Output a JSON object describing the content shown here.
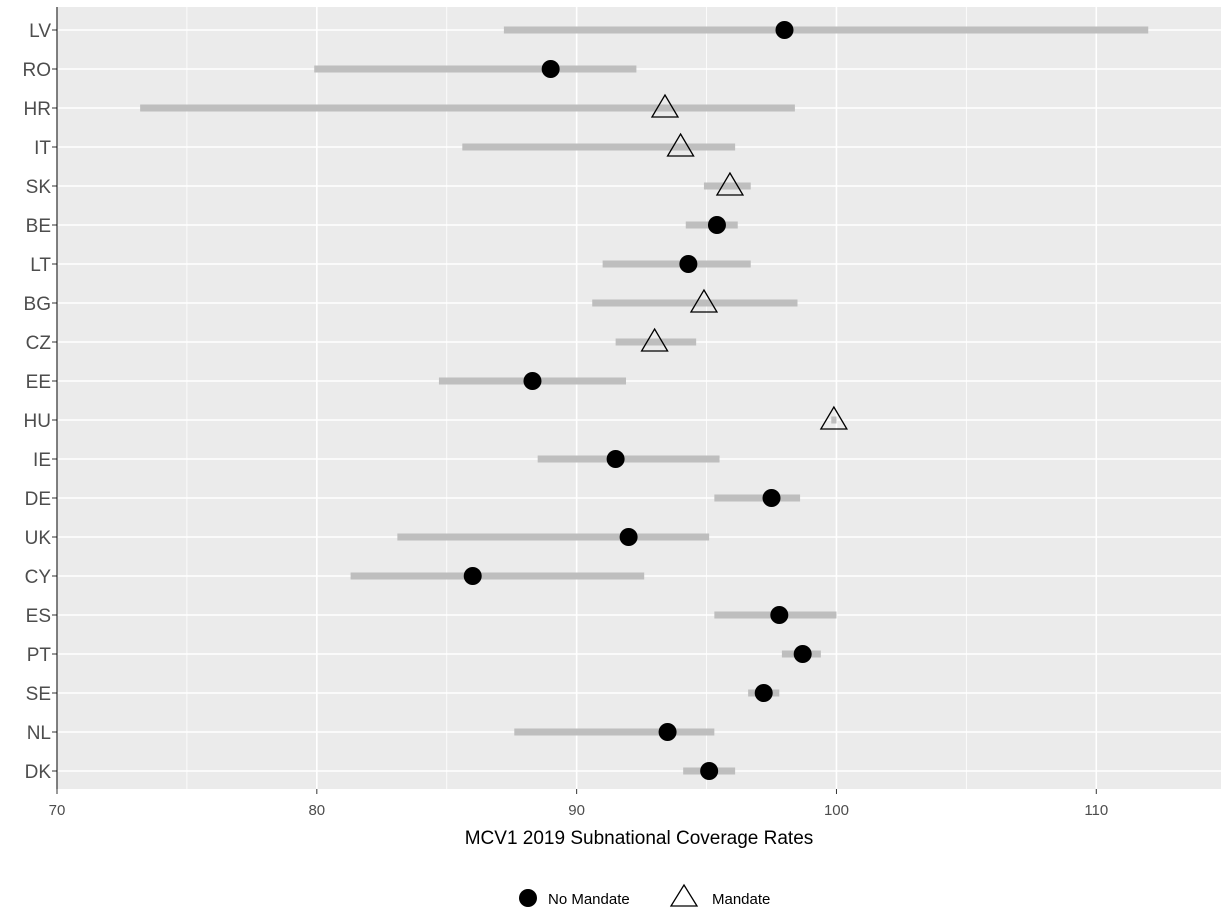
{
  "chart_data": {
    "type": "dot-range",
    "xlabel": "MCV1 2019 Subnational Coverage Rates",
    "xlim": [
      70,
      114.8
    ],
    "x_ticks": [
      70,
      80,
      90,
      100,
      110
    ],
    "x_minor_ticks": [
      75,
      85,
      95,
      105
    ],
    "grid": true,
    "legend_position": "bottom",
    "legend": [
      {
        "key": "no_mandate",
        "label": "No Mandate",
        "marker": "circle"
      },
      {
        "key": "mandate",
        "label": "Mandate",
        "marker": "triangle"
      }
    ],
    "colors": {
      "panel": "#ebebeb",
      "grid": "#ffffff",
      "range": "#bebebe",
      "point": "#000000",
      "tick_text": "#4d4d4d"
    },
    "countries": [
      {
        "code": "LV",
        "low": 87.2,
        "high": 112.0,
        "value": 98.0,
        "mandate": false
      },
      {
        "code": "RO",
        "low": 79.9,
        "high": 92.3,
        "value": 89.0,
        "mandate": false
      },
      {
        "code": "HR",
        "low": 73.2,
        "high": 98.4,
        "value": 93.4,
        "mandate": true
      },
      {
        "code": "IT",
        "low": 85.6,
        "high": 96.1,
        "value": 94.0,
        "mandate": true
      },
      {
        "code": "SK",
        "low": 94.9,
        "high": 96.7,
        "value": 95.9,
        "mandate": true
      },
      {
        "code": "BE",
        "low": 94.2,
        "high": 96.2,
        "value": 95.4,
        "mandate": false
      },
      {
        "code": "LT",
        "low": 91.0,
        "high": 96.7,
        "value": 94.3,
        "mandate": false
      },
      {
        "code": "BG",
        "low": 90.6,
        "high": 98.5,
        "value": 94.9,
        "mandate": true
      },
      {
        "code": "CZ",
        "low": 91.5,
        "high": 94.6,
        "value": 93.0,
        "mandate": true
      },
      {
        "code": "EE",
        "low": 84.7,
        "high": 91.9,
        "value": 88.3,
        "mandate": false
      },
      {
        "code": "HU",
        "low": 99.8,
        "high": 100.0,
        "value": 99.9,
        "mandate": true
      },
      {
        "code": "IE",
        "low": 88.5,
        "high": 95.5,
        "value": 91.5,
        "mandate": false
      },
      {
        "code": "DE",
        "low": 95.3,
        "high": 98.6,
        "value": 97.5,
        "mandate": false
      },
      {
        "code": "UK",
        "low": 83.1,
        "high": 95.1,
        "value": 92.0,
        "mandate": false
      },
      {
        "code": "CY",
        "low": 81.3,
        "high": 92.6,
        "value": 86.0,
        "mandate": false
      },
      {
        "code": "ES",
        "low": 95.3,
        "high": 100.0,
        "value": 97.8,
        "mandate": false
      },
      {
        "code": "PT",
        "low": 97.9,
        "high": 99.4,
        "value": 98.7,
        "mandate": false
      },
      {
        "code": "SE",
        "low": 96.6,
        "high": 97.8,
        "value": 97.2,
        "mandate": false
      },
      {
        "code": "NL",
        "low": 87.6,
        "high": 95.3,
        "value": 93.5,
        "mandate": false
      },
      {
        "code": "DK",
        "low": 94.1,
        "high": 96.1,
        "value": 95.1,
        "mandate": false
      }
    ]
  }
}
